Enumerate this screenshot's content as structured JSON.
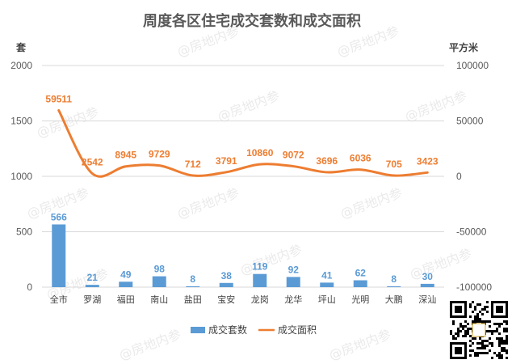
{
  "chart_data": {
    "type": "bar+line",
    "title": "周度各区住宅成交套数和成交面积",
    "left_unit": "套",
    "right_unit": "平方米",
    "categories": [
      "全市",
      "罗湖",
      "福田",
      "南山",
      "盐田",
      "宝安",
      "龙岗",
      "龙华",
      "坪山",
      "光明",
      "大鹏",
      "深汕"
    ],
    "series": [
      {
        "name": "成交套数",
        "type": "bar",
        "axis": "left",
        "color": "#5b9bd5",
        "values": [
          566,
          21,
          49,
          98,
          8,
          38,
          119,
          92,
          41,
          62,
          8,
          30
        ]
      },
      {
        "name": "成交面积",
        "type": "line",
        "axis": "right",
        "color": "#ed7d31",
        "values": [
          59511,
          2542,
          8945,
          9729,
          712,
          3791,
          10860,
          9072,
          3696,
          6036,
          705,
          3423
        ]
      }
    ],
    "left_ylim": [
      0,
      2000
    ],
    "left_ticks": [
      "0",
      "500",
      "1000",
      "1500",
      "2000"
    ],
    "right_ylim": [
      -100000,
      100000
    ],
    "right_ticks": [
      "-100000",
      "-50000",
      "0",
      "50000",
      "100000"
    ],
    "grid": true,
    "legend_position": "bottom"
  },
  "watermark": "@房地内参",
  "qr_icon": "qr-code-icon"
}
